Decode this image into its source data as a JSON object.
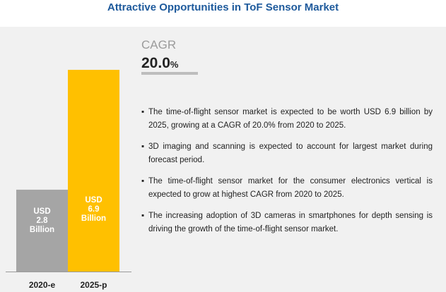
{
  "title": "Attractive Opportunities in ToF Sensor Market",
  "cagr": {
    "label": "CAGR",
    "value": "20.0",
    "unit": "%"
  },
  "bullets": [
    "The time-of-flight sensor market is expected to be worth USD 6.9 billion by 2025, growing at a CAGR of  20.0% from 2020 to 2025.",
    "3D imaging and scanning is expected to account for largest market during forecast period.",
    "The time-of-flight sensor market for the consumer electronics vertical is expected to grow at  highest CAGR from 2020 to 2025.",
    "The increasing adoption of 3D cameras in smartphones for depth sensing is driving the growth of the time-of-flight sensor market."
  ],
  "bullet_marker": "▪",
  "colors": {
    "title": "#1e5a9c",
    "panel": "#f1f1f1",
    "bar_2020": "#a5a5a5",
    "bar_2025": "#ffc000",
    "bar_text": "#ffffff"
  },
  "chart_data": {
    "type": "bar",
    "title": "Attractive Opportunities in ToF Sensor Market",
    "categories": [
      "2020-e",
      "2025-p"
    ],
    "values": [
      2.8,
      6.9
    ],
    "unit": "USD Billion",
    "data_labels": [
      [
        "USD",
        "2.8",
        "Billion"
      ],
      [
        "USD",
        "6.9",
        "Billion"
      ]
    ],
    "xlabel": "",
    "ylabel": "",
    "ylim": [
      0,
      6.9
    ],
    "grid": false,
    "legend": "none"
  }
}
